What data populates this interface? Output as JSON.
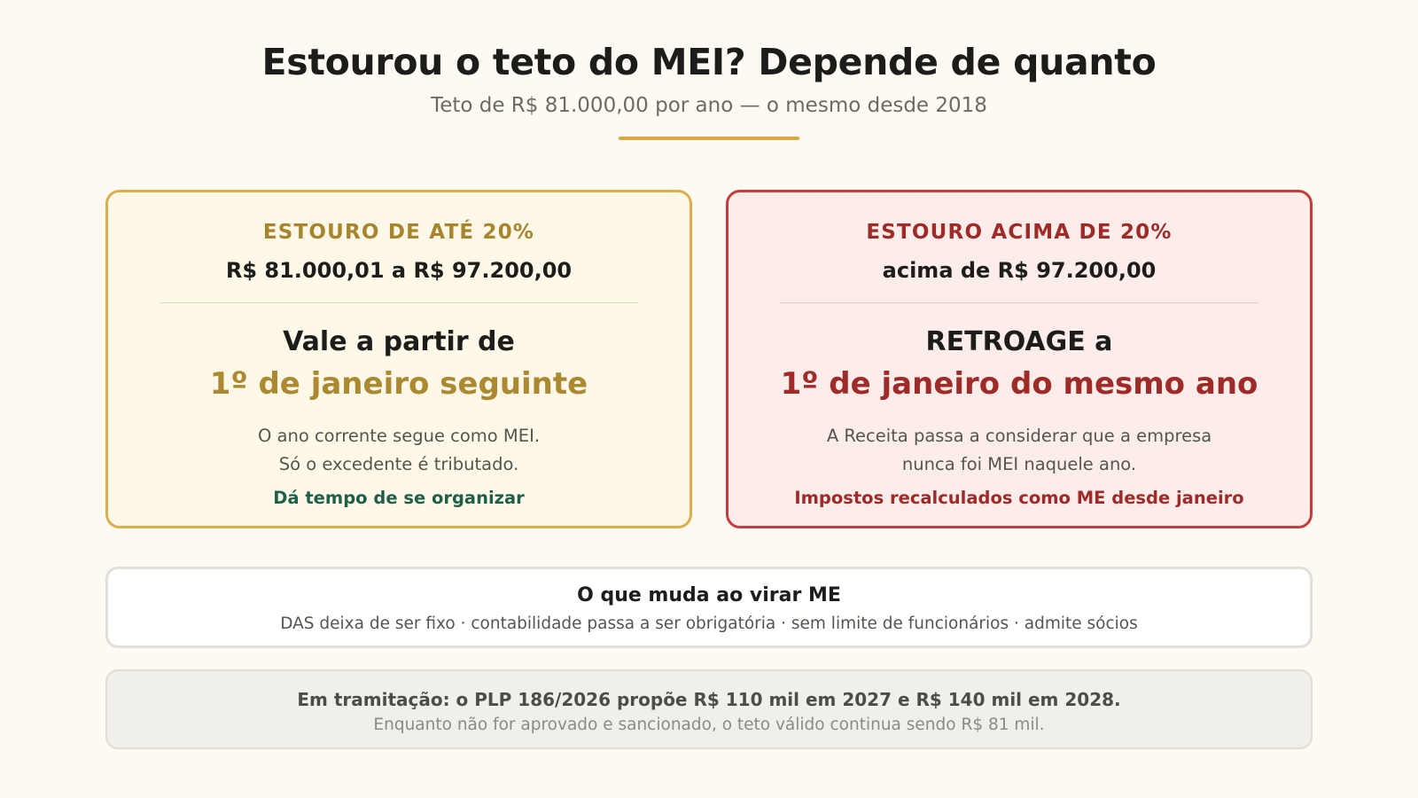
{
  "header": {
    "title": "Estourou o teto do MEI? Depende de quanto",
    "subtitle": "Teto de R$ 81.000,00 por ano — o mesmo desde 2018"
  },
  "cards": {
    "left": {
      "kicker": "ESTOURO DE ATÉ 20%",
      "range": "R$ 81.000,01 a R$ 97.200,00",
      "lead": "Vale a partir de",
      "highlight": "1º de janeiro seguinte",
      "body_line1": "O ano corrente segue como MEI.",
      "body_line2": "Só o excedente é tributado.",
      "note": "Dá tempo de se organizar"
    },
    "right": {
      "kicker": "ESTOURO ACIMA DE 20%",
      "range": "acima de R$ 97.200,00",
      "lead": "RETROAGE a",
      "highlight": "1º de janeiro do mesmo ano",
      "body_line1": "A Receita passa a considerar que a empresa",
      "body_line2": "nunca foi MEI naquele ano.",
      "note": "Impostos recalculados como ME desde janeiro"
    }
  },
  "changes": {
    "title": "O que muda ao virar ME",
    "text": "DAS deixa de ser fixo · contabilidade passa a ser obrigatória · sem limite de funcionários · admite sócios"
  },
  "status": {
    "main": "Em tramitação: o PLP 186/2026 propõe R$ 110 mil em 2027 e R$ 140 mil em 2028.",
    "sub": "Enquanto não for aprovado e sancionado, o teto válido continua sendo R$ 81 mil."
  },
  "colors": {
    "background": "#fdfaf3",
    "accent_gold": "#d9a845",
    "gold_text": "#ac8830",
    "red_border": "#c43d3b",
    "red_text": "#9f2b28",
    "green_text": "#1f5f4a"
  }
}
